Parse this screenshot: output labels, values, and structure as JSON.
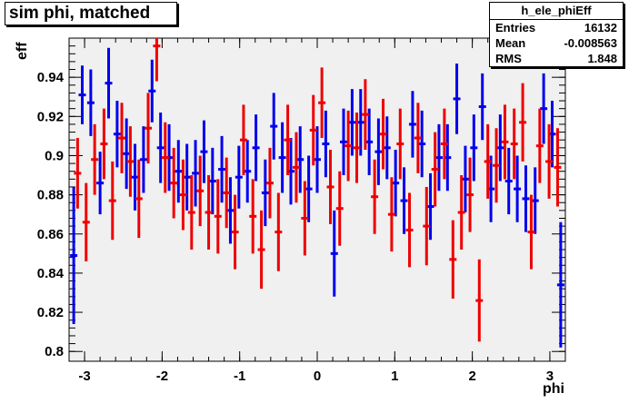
{
  "title": "sim phi, matched",
  "stats": {
    "name": "h_ele_phiEff",
    "rows": [
      {
        "label": "Entries",
        "value": "16132"
      },
      {
        "label": "Mean",
        "value": "-0.008563"
      },
      {
        "label": "RMS",
        "value": "1.848"
      }
    ]
  },
  "colors": {
    "frame_bg": "#f0f0f0",
    "series_blue": "#0000ee",
    "series_red": "#ee0000"
  },
  "chart_data": {
    "type": "scatter",
    "xlabel": "phi",
    "ylabel": "eff",
    "xlim": [
      -3.2,
      3.2
    ],
    "ylim": [
      0.795,
      0.96
    ],
    "xticks": [
      -3,
      -2,
      -1,
      0,
      1,
      2,
      3
    ],
    "xtick_labels": [
      "-3",
      "-2",
      "-1",
      "0",
      "1",
      "2",
      "3"
    ],
    "yticks": [
      0.8,
      0.82,
      0.84,
      0.86,
      0.88,
      0.9,
      0.92,
      0.94
    ],
    "ytick_labels": [
      "0.8",
      "0.82",
      "0.84",
      "0.86",
      "0.88",
      "0.9",
      "0.92",
      "0.94"
    ],
    "grid": false,
    "series": [
      {
        "color": "blue",
        "x": [
          -3.14,
          -2.92,
          -2.69,
          -2.46,
          -2.24,
          -2.02,
          -1.79,
          -1.57,
          -1.35,
          -1.12,
          -0.9,
          -0.67,
          -0.45,
          -0.22,
          0,
          0.22,
          0.45,
          0.67,
          0.9,
          1.12,
          1.35,
          1.57,
          1.8,
          2.02,
          2.24,
          2.47,
          2.69,
          2.92,
          3.14,
          -3.03,
          -2.8,
          -2.58,
          -2.35,
          -2.13,
          -1.91,
          -1.68,
          -1.46,
          -1.23,
          -1.01,
          -0.79,
          -0.56,
          -0.34,
          -0.11,
          0.11,
          0.34,
          0.56,
          0.79,
          1.01,
          1.23,
          1.46,
          1.68,
          1.91,
          2.13,
          2.36,
          2.58,
          2.81,
          3.03
        ],
        "y": [
          0.849,
          0.927,
          0.937,
          0.901,
          0.898,
          0.904,
          0.892,
          0.891,
          0.887,
          0.872,
          0.892,
          0.881,
          0.899,
          0.898,
          0.898,
          0.85,
          0.917,
          0.907,
          0.904,
          0.877,
          0.906,
          0.899,
          0.929,
          0.904,
          0.883,
          0.887,
          0.878,
          0.924,
          0.834,
          0.931,
          0.886,
          0.911,
          0.889,
          0.933,
          0.899,
          0.889,
          0.902,
          0.893,
          0.889,
          0.904,
          0.915,
          0.892,
          0.883,
          0.906,
          0.907,
          0.917,
          0.902,
          0.886,
          0.916,
          0.874,
          0.899,
          0.888,
          0.925,
          0.904,
          0.883,
          0.877,
          0.911
        ],
        "yerr": [
          0.035,
          0.017,
          0.018,
          0.018,
          0.017,
          0.018,
          0.016,
          0.017,
          0.017,
          0.017,
          0.016,
          0.017,
          0.018,
          0.017,
          0.017,
          0.022,
          0.017,
          0.017,
          0.016,
          0.017,
          0.017,
          0.017,
          0.018,
          0.017,
          0.017,
          0.017,
          0.017,
          0.018,
          0.032,
          0.015,
          0.016,
          0.017,
          0.017,
          0.016,
          0.017,
          0.017,
          0.016,
          0.017,
          0.016,
          0.017,
          0.017,
          0.017,
          0.017,
          0.017,
          0.017,
          0.017,
          0.017,
          0.017,
          0.017,
          0.017,
          0.017,
          0.017,
          0.017,
          0.017,
          0.017,
          0.017,
          0.017
        ]
      },
      {
        "color": "red",
        "x": [
          -3.09,
          -2.98,
          -2.87,
          -2.75,
          -2.64,
          -2.52,
          -2.41,
          -2.3,
          -2.18,
          -2.07,
          -1.96,
          -1.85,
          -1.73,
          -1.62,
          -1.51,
          -1.4,
          -1.28,
          -1.17,
          -1.06,
          -0.95,
          -0.83,
          -0.72,
          -0.61,
          -0.5,
          -0.38,
          -0.27,
          -0.16,
          -0.05,
          0.06,
          0.17,
          0.29,
          0.4,
          0.51,
          0.62,
          0.74,
          0.85,
          0.96,
          1.07,
          1.19,
          1.3,
          1.41,
          1.52,
          1.64,
          1.75,
          1.86,
          1.97,
          2.09,
          2.2,
          2.31,
          2.42,
          2.54,
          2.65,
          2.76,
          2.87,
          2.99,
          3.1
        ],
        "y": [
          0.891,
          0.866,
          0.898,
          0.906,
          0.877,
          0.909,
          0.897,
          0.878,
          0.914,
          0.956,
          0.899,
          0.886,
          0.88,
          0.871,
          0.882,
          0.871,
          0.869,
          0.881,
          0.861,
          0.908,
          0.869,
          0.852,
          0.886,
          0.861,
          0.908,
          0.894,
          0.868,
          0.913,
          0.927,
          0.884,
          0.873,
          0.905,
          0.904,
          0.921,
          0.879,
          0.911,
          0.87,
          0.906,
          0.862,
          0.909,
          0.864,
          0.893,
          0.906,
          0.847,
          0.871,
          0.88,
          0.826,
          0.897,
          0.895,
          0.907,
          0.906,
          0.917,
          0.861,
          0.905,
          0.897,
          0.894
        ],
        "yerr": [
          0.018,
          0.02,
          0.018,
          0.018,
          0.02,
          0.018,
          0.018,
          0.02,
          0.018,
          0.018,
          0.018,
          0.018,
          0.018,
          0.019,
          0.018,
          0.019,
          0.019,
          0.018,
          0.019,
          0.018,
          0.019,
          0.02,
          0.018,
          0.02,
          0.018,
          0.018,
          0.019,
          0.018,
          0.018,
          0.019,
          0.019,
          0.018,
          0.018,
          0.018,
          0.019,
          0.018,
          0.019,
          0.018,
          0.019,
          0.018,
          0.02,
          0.019,
          0.018,
          0.02,
          0.019,
          0.019,
          0.021,
          0.019,
          0.019,
          0.019,
          0.018,
          0.02,
          0.019,
          0.019,
          0.019,
          0.02
        ]
      }
    ]
  }
}
